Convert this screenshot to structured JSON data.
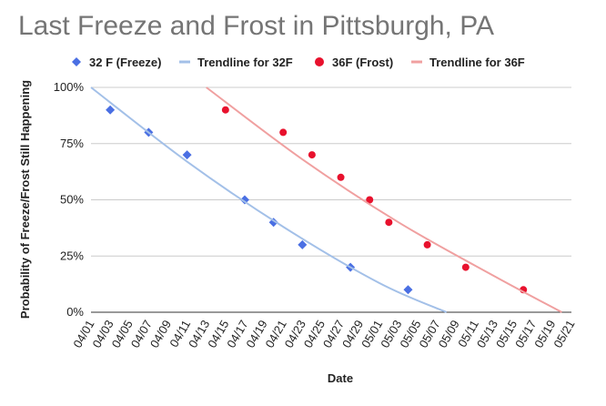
{
  "chart_data": {
    "type": "scatter",
    "title": "Last Freeze and Frost in Pittsburgh, PA",
    "xlabel": "Date",
    "ylabel": "Probability of Freeze/Frost Still Happening",
    "x_ticks": [
      "04/01",
      "04/03",
      "04/05",
      "04/07",
      "04/09",
      "04/11",
      "04/13",
      "04/15",
      "04/17",
      "04/19",
      "04/21",
      "04/23",
      "04/25",
      "04/27",
      "04/29",
      "05/01",
      "05/03",
      "05/05",
      "05/07",
      "05/09",
      "05/11",
      "05/13",
      "05/15",
      "05/17",
      "05/19",
      "05/21"
    ],
    "y_ticks": [
      "0%",
      "25%",
      "50%",
      "75%",
      "100%"
    ],
    "ylim": [
      0,
      100
    ],
    "grid": true,
    "legend_position": "top",
    "series": [
      {
        "name": "32 F (Freeze)",
        "marker": "diamond",
        "color": "#4a6fe3",
        "points": [
          {
            "x": "04/03",
            "y": 90
          },
          {
            "x": "04/07",
            "y": 80
          },
          {
            "x": "04/11",
            "y": 70
          },
          {
            "x": "04/17",
            "y": 50
          },
          {
            "x": "04/20",
            "y": 40
          },
          {
            "x": "04/23",
            "y": 30
          },
          {
            "x": "04/28",
            "y": 20
          },
          {
            "x": "05/04",
            "y": 10
          }
        ]
      },
      {
        "name": "Trendline for 32F",
        "type": "trendline",
        "color": "#a3c0e8",
        "points": [
          {
            "x": "04/01",
            "y": 100
          },
          {
            "x": "04/11",
            "y": 67
          },
          {
            "x": "04/21",
            "y": 38
          },
          {
            "x": "05/01",
            "y": 13
          },
          {
            "x": "05/08",
            "y": 0
          }
        ]
      },
      {
        "name": "36F (Frost)",
        "marker": "circle",
        "color": "#e8112d",
        "points": [
          {
            "x": "04/15",
            "y": 90
          },
          {
            "x": "04/21",
            "y": 80
          },
          {
            "x": "04/24",
            "y": 70
          },
          {
            "x": "04/27",
            "y": 60
          },
          {
            "x": "04/30",
            "y": 50
          },
          {
            "x": "05/02",
            "y": 40
          },
          {
            "x": "05/06",
            "y": 30
          },
          {
            "x": "05/10",
            "y": 20
          },
          {
            "x": "05/16",
            "y": 10
          }
        ]
      },
      {
        "name": "Trendline for 36F",
        "type": "trendline",
        "color": "#f0a0a0",
        "points": [
          {
            "x": "04/13",
            "y": 100
          },
          {
            "x": "04/23",
            "y": 68
          },
          {
            "x": "05/03",
            "y": 40
          },
          {
            "x": "05/13",
            "y": 16
          },
          {
            "x": "05/20",
            "y": 0
          }
        ]
      }
    ]
  }
}
